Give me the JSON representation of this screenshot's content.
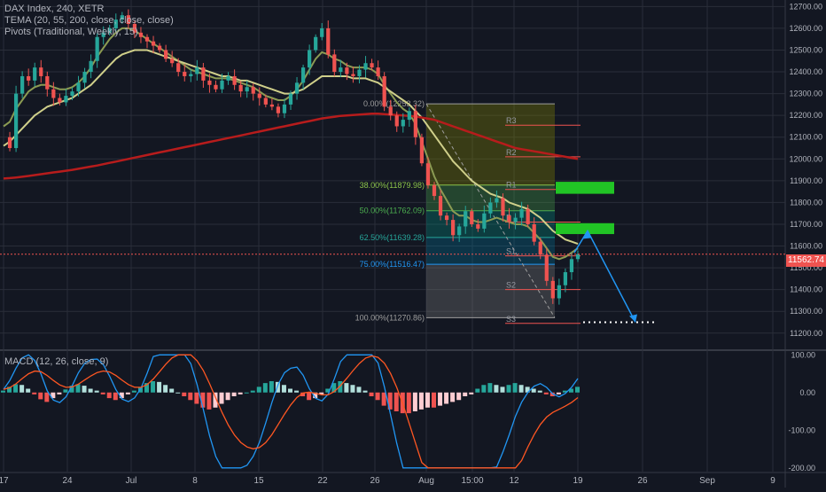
{
  "header": {
    "symbol_line": "DAX Index, 240, XETR",
    "tema_line": "TEMA (20, 55, 200, close, close, close)",
    "pivots_line": "Pivots (Traditional, Weekly, 15)"
  },
  "macd_label": "MACD (12, 26, close, 9)",
  "last_price": "11562.74",
  "colors": {
    "background": "#131722",
    "grid": "#2a2e39",
    "up": "#26a69a",
    "down": "#ef5350",
    "tema_fast": "#8b9b53",
    "tema_mid": "#cfcf8a",
    "tema_slow": "#b71c1c",
    "zone": "#21c425",
    "projection": "#2196f3"
  },
  "chart_data": [
    {
      "type": "candlestick",
      "title": "DAX Index, 240, XETR",
      "x_ticks": [
        "17",
        "24",
        "Jul",
        "8",
        "15",
        "22",
        "26",
        "Aug",
        "15:00",
        "12",
        "19",
        "26",
        "Sep",
        "9"
      ],
      "y_ticks": [
        12700,
        12600,
        12500,
        12400,
        12300,
        12200,
        12100,
        12000,
        11900,
        11800,
        11700,
        11600,
        11500,
        11400,
        11300,
        11200
      ],
      "ylim": [
        11130,
        12730
      ],
      "close_series": [
        12100,
        12050,
        12300,
        12380,
        12360,
        12420,
        12380,
        12320,
        12280,
        12260,
        12290,
        12310,
        12350,
        12400,
        12450,
        12560,
        12580,
        12600,
        12640,
        12660,
        12620,
        12580,
        12560,
        12540,
        12520,
        12500,
        12460,
        12440,
        12400,
        12380,
        12390,
        12420,
        12360,
        12340,
        12320,
        12360,
        12380,
        12340,
        12310,
        12330,
        12300,
        12280,
        12250,
        12240,
        12210,
        12250,
        12300,
        12350,
        12420,
        12500,
        12560,
        12600,
        12480,
        12400,
        12420,
        12390,
        12380,
        12410,
        12440,
        12420,
        12380,
        12240,
        12200,
        12150,
        12180,
        12220,
        12100,
        11980,
        11880,
        11830,
        11740,
        11720,
        11650,
        11690,
        11760,
        11700,
        11680,
        11750,
        11800,
        11820,
        11740,
        11710,
        11730,
        11770,
        11700,
        11620,
        11560,
        11440,
        11360,
        11420,
        11480,
        11540,
        11562.74
      ],
      "tema": [
        {
          "name": "TEMA 20",
          "values": [
            12150,
            12170,
            12230,
            12270,
            12310,
            12330,
            12340,
            12340,
            12330,
            12320,
            12320,
            12330,
            12350,
            12380,
            12420,
            12470,
            12510,
            12550,
            12580,
            12600,
            12600,
            12590,
            12570,
            12550,
            12530,
            12510,
            12490,
            12470,
            12450,
            12430,
            12410,
            12400,
            12390,
            12380,
            12370,
            12370,
            12370,
            12360,
            12350,
            12340,
            12330,
            12310,
            12290,
            12280,
            12270,
            12270,
            12290,
            12320,
            12360,
            12410,
            12460,
            12490,
            12480,
            12460,
            12450,
            12430,
            12420,
            12420,
            12420,
            12410,
            12390,
            12340,
            12300,
            12260,
            12230,
            12210,
            12160,
            12080,
            12000,
            11920,
            11860,
            11810,
            11760,
            11740,
            11740,
            11720,
            11710,
            11710,
            11720,
            11730,
            11720,
            11710,
            11700,
            11700,
            11690,
            11660,
            11630,
            11590,
            11550,
            11540,
            11550,
            11570,
            11590
          ]
        },
        {
          "name": "TEMA 55",
          "values": [
            12060,
            12080,
            12110,
            12140,
            12170,
            12200,
            12220,
            12240,
            12250,
            12260,
            12270,
            12280,
            12300,
            12320,
            12340,
            12370,
            12400,
            12430,
            12460,
            12480,
            12490,
            12500,
            12500,
            12500,
            12490,
            12480,
            12470,
            12460,
            12450,
            12440,
            12430,
            12420,
            12410,
            12400,
            12390,
            12380,
            12380,
            12370,
            12360,
            12360,
            12350,
            12340,
            12330,
            12320,
            12310,
            12300,
            12300,
            12310,
            12320,
            12340,
            12360,
            12380,
            12380,
            12380,
            12380,
            12380,
            12370,
            12370,
            12370,
            12360,
            12350,
            12330,
            12310,
            12290,
            12270,
            12250,
            12220,
            12190,
            12150,
            12110,
            12070,
            12030,
            11990,
            11960,
            11930,
            11900,
            11880,
            11860,
            11840,
            11830,
            11820,
            11800,
            11790,
            11780,
            11770,
            11750,
            11730,
            11700,
            11670,
            11650,
            11630,
            11620,
            11610
          ]
        },
        {
          "name": "TEMA 200",
          "values": [
            11910,
            11912,
            11915,
            11918,
            11922,
            11926,
            11930,
            11934,
            11938,
            11942,
            11946,
            11950,
            11955,
            11960,
            11965,
            11970,
            11976,
            11982,
            11988,
            11994,
            12000,
            12006,
            12012,
            12018,
            12024,
            12030,
            12036,
            12042,
            12048,
            12054,
            12060,
            12066,
            12072,
            12078,
            12084,
            12090,
            12096,
            12102,
            12108,
            12114,
            12120,
            12126,
            12132,
            12138,
            12144,
            12150,
            12156,
            12162,
            12168,
            12174,
            12180,
            12186,
            12190,
            12194,
            12198,
            12200,
            12202,
            12204,
            12206,
            12208,
            12208,
            12206,
            12204,
            12202,
            12200,
            12198,
            12195,
            12190,
            12185,
            12180,
            12170,
            12160,
            12150,
            12140,
            12130,
            12120,
            12110,
            12100,
            12090,
            12080,
            12070,
            12060,
            12050,
            12045,
            12040,
            12035,
            12030,
            12025,
            12020,
            12015,
            12010,
            12005,
            12000
          ]
        }
      ],
      "fib_levels": [
        {
          "ratio": "0.00%",
          "price": "12253.32",
          "label": "0.00%(12253.32)",
          "value": 12253.32
        },
        {
          "ratio": "38.00%",
          "price": "11879.98",
          "label": "38.00%(11879.98)",
          "value": 11879.98
        },
        {
          "ratio": "50.00%",
          "price": "11762.09",
          "label": "50.00%(11762.09)",
          "value": 11762.09
        },
        {
          "ratio": "62.50%",
          "price": "11639.28",
          "label": "62.50%(11639.28)",
          "value": 11639.28
        },
        {
          "ratio": "75.00%",
          "price": "11516.47",
          "label": "75.00%(11516.47)",
          "value": 11516.47
        },
        {
          "ratio": "100.00%",
          "price": "11270.86",
          "label": "100.00%(11270.86)",
          "value": 11270.86
        }
      ],
      "pivots": [
        {
          "label": "R3",
          "value": 12155
        },
        {
          "label": "R2",
          "value": 12010
        },
        {
          "label": "R1",
          "value": 11860
        },
        {
          "label": "P",
          "value": 11710
        },
        {
          "label": "S1",
          "value": 11555
        },
        {
          "label": "S2",
          "value": 11400
        },
        {
          "label": "S3",
          "value": 11245
        }
      ],
      "zones": [
        {
          "from": 11840,
          "to": 11895
        },
        {
          "from": 11655,
          "to": 11705
        }
      ],
      "target": 11250
    },
    {
      "type": "macd",
      "title": "MACD (12, 26, close, 9)",
      "y_ticks": [
        100.0,
        0.0,
        -100.0,
        -200.0
      ],
      "ylim": [
        -210,
        110
      ],
      "histogram": [
        5,
        15,
        22,
        20,
        10,
        -5,
        -18,
        -25,
        -15,
        -5,
        8,
        18,
        22,
        18,
        10,
        5,
        -5,
        -15,
        -20,
        -15,
        -5,
        5,
        15,
        25,
        30,
        28,
        20,
        10,
        0,
        -10,
        -20,
        -30,
        -40,
        -45,
        -40,
        -30,
        -20,
        -10,
        -5,
        0,
        5,
        15,
        25,
        30,
        28,
        20,
        10,
        5,
        -10,
        -20,
        -15,
        -5,
        10,
        25,
        30,
        25,
        20,
        15,
        5,
        -10,
        -20,
        -35,
        -45,
        -50,
        -55,
        -55,
        -50,
        -45,
        -40,
        -40,
        -35,
        -30,
        -25,
        -20,
        -10,
        -5,
        10,
        20,
        25,
        20,
        15,
        20,
        25,
        20,
        15,
        10,
        5,
        -5,
        -10,
        -5,
        5,
        10,
        15
      ]
    }
  ]
}
